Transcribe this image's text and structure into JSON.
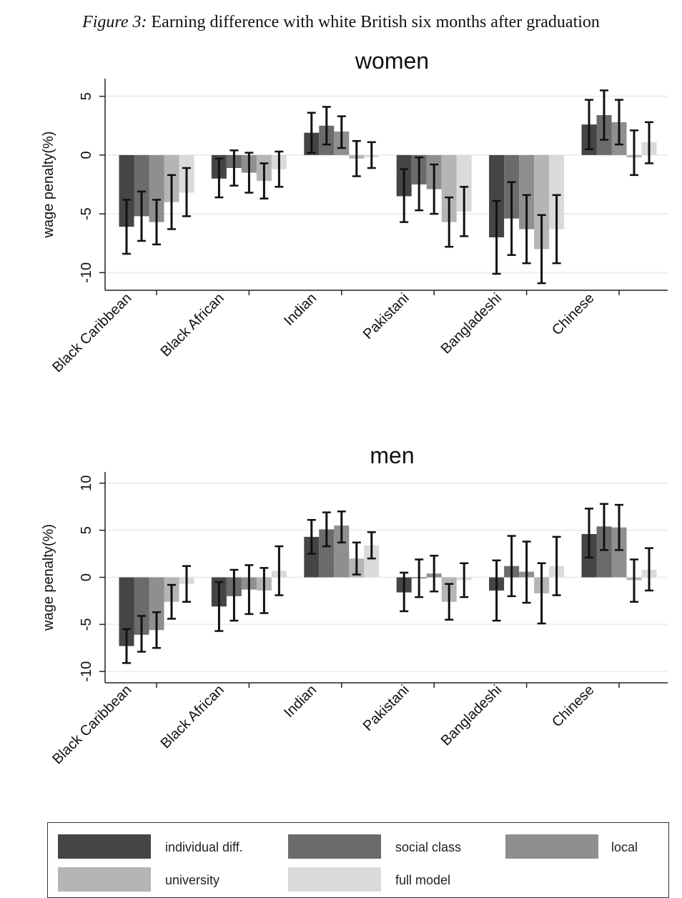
{
  "figure": {
    "label": "Figure 3:",
    "title": "Earning difference with white British six months after graduation"
  },
  "colors": {
    "individual_diff": "#454545",
    "social_class": "#6b6b6b",
    "local": "#8f8f8f",
    "university": "#b5b5b5",
    "full_model": "#dadada",
    "error_bar": "#111111",
    "grid": "#eeeeee",
    "axis": "#222222"
  },
  "legend": {
    "items": [
      {
        "label": "individual diff.",
        "color": "#454545"
      },
      {
        "label": "social class",
        "color": "#6b6b6b"
      },
      {
        "label": "local",
        "color": "#8f8f8f"
      },
      {
        "label": "university",
        "color": "#b5b5b5"
      },
      {
        "label": "full model",
        "color": "#dadada"
      }
    ]
  },
  "chart_data": [
    {
      "type": "bar",
      "title": "women",
      "ylabel": "wage penalty(%)",
      "ylim": [
        -11.5,
        6.5
      ],
      "yticks": [
        5,
        0,
        -5,
        -10
      ],
      "ytick_labels": [
        "5",
        "0",
        "-5",
        "-10"
      ],
      "grid": true,
      "categories": [
        "Black Caribbean",
        "Black African",
        "Indian",
        "Pakistani",
        "Bangladeshi",
        "Chinese"
      ],
      "series": [
        {
          "name": "individual diff.",
          "values": [
            -6.1,
            -2.0,
            1.9,
            -3.5,
            -7.0,
            2.6
          ],
          "ci_low": [
            -8.4,
            -3.6,
            0.2,
            -5.7,
            -10.1,
            0.5
          ],
          "ci_high": [
            -3.8,
            -0.3,
            3.6,
            -1.2,
            -3.9,
            4.7
          ]
        },
        {
          "name": "social class",
          "values": [
            -5.2,
            -1.1,
            2.5,
            -2.5,
            -5.4,
            3.4
          ],
          "ci_low": [
            -7.3,
            -2.6,
            0.9,
            -4.7,
            -8.5,
            1.3
          ],
          "ci_high": [
            -3.1,
            0.4,
            4.1,
            -0.2,
            -2.3,
            5.5
          ]
        },
        {
          "name": "local",
          "values": [
            -5.7,
            -1.5,
            2.0,
            -2.9,
            -6.3,
            2.8
          ],
          "ci_low": [
            -7.6,
            -3.2,
            0.6,
            -5.0,
            -9.2,
            0.9
          ],
          "ci_high": [
            -3.8,
            0.2,
            3.3,
            -0.8,
            -3.4,
            4.7
          ]
        },
        {
          "name": "university",
          "values": [
            -4.0,
            -2.2,
            -0.3,
            -5.7,
            -8.0,
            -0.2
          ],
          "ci_low": [
            -6.3,
            -3.7,
            -1.8,
            -7.8,
            -10.9,
            -1.7
          ],
          "ci_high": [
            -1.7,
            -0.7,
            1.2,
            -3.6,
            -5.1,
            2.1
          ]
        },
        {
          "name": "full model",
          "values": [
            -3.2,
            -1.2,
            -0.2,
            -4.8,
            -6.3,
            1.1
          ],
          "ci_low": [
            -5.2,
            -2.7,
            -1.1,
            -6.9,
            -9.2,
            -0.7
          ],
          "ci_high": [
            -1.1,
            0.3,
            1.1,
            -2.7,
            -3.4,
            2.8
          ]
        }
      ]
    },
    {
      "type": "bar",
      "title": "men",
      "ylabel": "wage penalty(%)",
      "ylim": [
        -11.2,
        11.2
      ],
      "yticks": [
        10,
        5,
        0,
        -5,
        -10
      ],
      "ytick_labels": [
        "10",
        "5",
        "0",
        "-5",
        "-10"
      ],
      "grid": true,
      "categories": [
        "Black Caribbean",
        "Black African",
        "Indian",
        "Pakistani",
        "Bangladeshi",
        "Chinese"
      ],
      "series": [
        {
          "name": "individual diff.",
          "values": [
            -7.3,
            -3.1,
            4.3,
            -1.6,
            -1.4,
            4.6
          ],
          "ci_low": [
            -9.1,
            -5.7,
            2.5,
            -3.6,
            -4.6,
            2.1
          ],
          "ci_high": [
            -5.5,
            -0.5,
            6.1,
            0.5,
            1.8,
            7.3
          ]
        },
        {
          "name": "social class",
          "values": [
            -6.1,
            -2.0,
            5.1,
            -0.1,
            1.2,
            5.4
          ],
          "ci_low": [
            -7.9,
            -4.6,
            3.3,
            -2.1,
            -2.0,
            2.9
          ],
          "ci_high": [
            -4.1,
            0.8,
            6.9,
            1.9,
            4.4,
            7.8
          ]
        },
        {
          "name": "local",
          "values": [
            -5.6,
            -1.3,
            5.5,
            0.4,
            0.6,
            5.3
          ],
          "ci_low": [
            -7.5,
            -3.9,
            3.7,
            -1.5,
            -2.7,
            2.9
          ],
          "ci_high": [
            -3.7,
            1.3,
            7.0,
            2.3,
            3.8,
            7.7
          ]
        },
        {
          "name": "university",
          "values": [
            -2.6,
            -1.4,
            2.0,
            -2.6,
            -1.7,
            -0.3
          ],
          "ci_low": [
            -4.4,
            -3.8,
            0.3,
            -4.5,
            -4.9,
            -2.6
          ],
          "ci_high": [
            -0.8,
            1.0,
            3.7,
            -0.7,
            1.5,
            1.9
          ]
        },
        {
          "name": "full model",
          "values": [
            -0.7,
            0.7,
            3.4,
            -0.3,
            1.2,
            0.8
          ],
          "ci_low": [
            -2.6,
            -1.9,
            2.0,
            -2.1,
            -1.9,
            -1.4
          ],
          "ci_high": [
            1.2,
            3.3,
            4.8,
            1.5,
            4.3,
            3.1
          ]
        }
      ]
    }
  ]
}
